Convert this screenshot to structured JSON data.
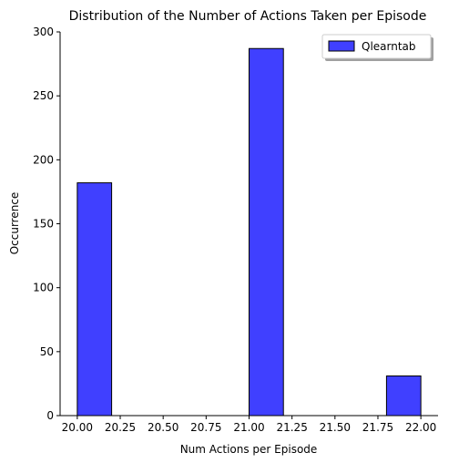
{
  "chart_data": {
    "type": "bar",
    "subtype": "histogram",
    "title": "Distribution of the Number of Actions Taken per Episode",
    "xlabel": "Num Actions per Episode",
    "ylabel": "Occurrence",
    "xlim": [
      19.9,
      22.1
    ],
    "ylim": [
      0,
      300
    ],
    "xticks": [
      "20.00",
      "20.25",
      "20.50",
      "20.75",
      "21.00",
      "21.25",
      "21.50",
      "21.75",
      "22.00"
    ],
    "yticks": [
      "0",
      "50",
      "100",
      "150",
      "200",
      "250",
      "300"
    ],
    "bin_edges": [
      20.0,
      20.2,
      20.4,
      20.6,
      20.8,
      21.0,
      21.2,
      21.4,
      21.6,
      21.8,
      22.0
    ],
    "series": [
      {
        "name": "Qlearntab",
        "color": "#0000ff",
        "opacity": 0.75,
        "values": [
          182,
          0,
          0,
          0,
          0,
          287,
          0,
          0,
          0,
          31
        ]
      }
    ],
    "legend": {
      "position": "top-right",
      "shadow": true
    },
    "grid": false,
    "spines": [
      "left",
      "bottom"
    ]
  }
}
